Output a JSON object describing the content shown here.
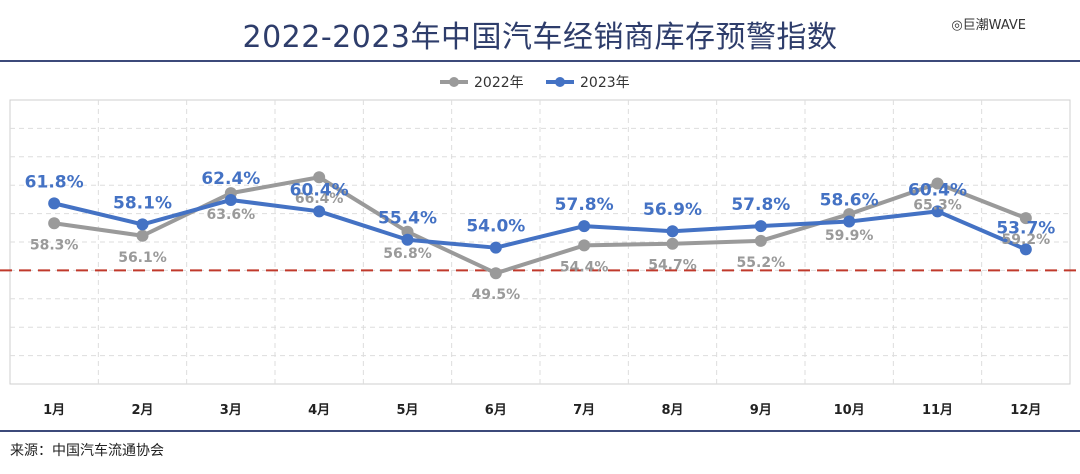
{
  "title": "2022-2023年中国汽车经销商库存预警指数",
  "watermark": "◎巨潮WAVE",
  "source": "来源：中国汽车流通协会",
  "colors": {
    "series_2022": "#9a9a9a",
    "series_2023": "#4472c4",
    "warning_line": "#c0392b",
    "rule": "#3c4a7a"
  },
  "chart_data": {
    "type": "line",
    "title": "",
    "xlabel": "",
    "ylabel": "",
    "categories": [
      "1月",
      "2月",
      "3月",
      "4月",
      "5月",
      "6月",
      "7月",
      "8月",
      "9月",
      "10月",
      "11月",
      "12月"
    ],
    "ylim": [
      30,
      80
    ],
    "warning_line": 50,
    "grid": true,
    "legend": "top-center",
    "series": [
      {
        "name": "2022年",
        "values": [
          58.3,
          56.1,
          63.6,
          66.4,
          56.8,
          49.5,
          54.4,
          54.7,
          55.2,
          59.9,
          65.3,
          59.2
        ],
        "labels": [
          "58.3%",
          "56.1%",
          "63.6%",
          "66.4%",
          "56.8%",
          "49.5%",
          "54.4%",
          "54.7%",
          "55.2%",
          "59.9%",
          "65.3%",
          "59.2%"
        ]
      },
      {
        "name": "2023年",
        "values": [
          61.8,
          58.1,
          62.4,
          60.4,
          55.4,
          54.0,
          57.8,
          56.9,
          57.8,
          58.6,
          60.4,
          53.7
        ],
        "labels": [
          "61.8%",
          "58.1%",
          "62.4%",
          "60.4%",
          "55.4%",
          "54.0%",
          "57.8%",
          "56.9%",
          "57.8%",
          "58.6%",
          "60.4%",
          "53.7%"
        ]
      }
    ]
  }
}
